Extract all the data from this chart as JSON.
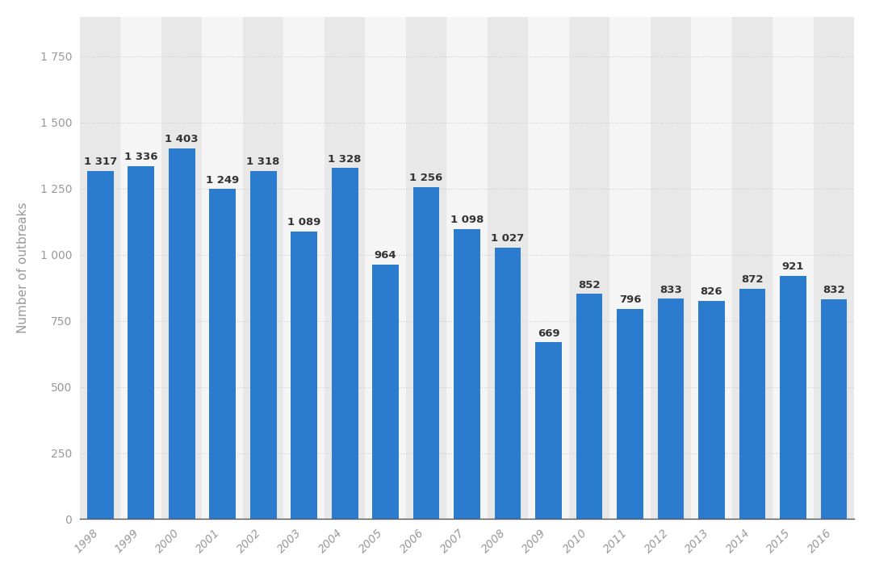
{
  "years": [
    1998,
    1999,
    2000,
    2001,
    2002,
    2003,
    2004,
    2005,
    2006,
    2007,
    2008,
    2009,
    2010,
    2011,
    2012,
    2013,
    2014,
    2015,
    2016
  ],
  "values": [
    1317,
    1336,
    1403,
    1249,
    1318,
    1089,
    1328,
    964,
    1256,
    1098,
    1027,
    669,
    852,
    796,
    833,
    826,
    872,
    921,
    832
  ],
  "bar_color": "#2b7bce",
  "background_color": "#ffffff",
  "plot_bg_color": "#ffffff",
  "col_bg_even": "#e8e8e8",
  "col_bg_odd": "#f5f5f5",
  "ylabel": "Number of outbreaks",
  "ylim": [
    0,
    1900
  ],
  "yticks": [
    0,
    250,
    500,
    750,
    1000,
    1250,
    1500,
    1750
  ],
  "ytick_labels": [
    "0",
    "250",
    "500",
    "750",
    "1 000",
    "1 250",
    "1 500",
    "1 750"
  ],
  "bar_label_color": "#333333",
  "bar_label_fontsize": 9.5,
  "axis_label_fontsize": 11,
  "tick_label_color": "#999999",
  "tick_label_fontsize": 10,
  "grid_color": "#cccccc",
  "grid_linestyle": "dotted"
}
